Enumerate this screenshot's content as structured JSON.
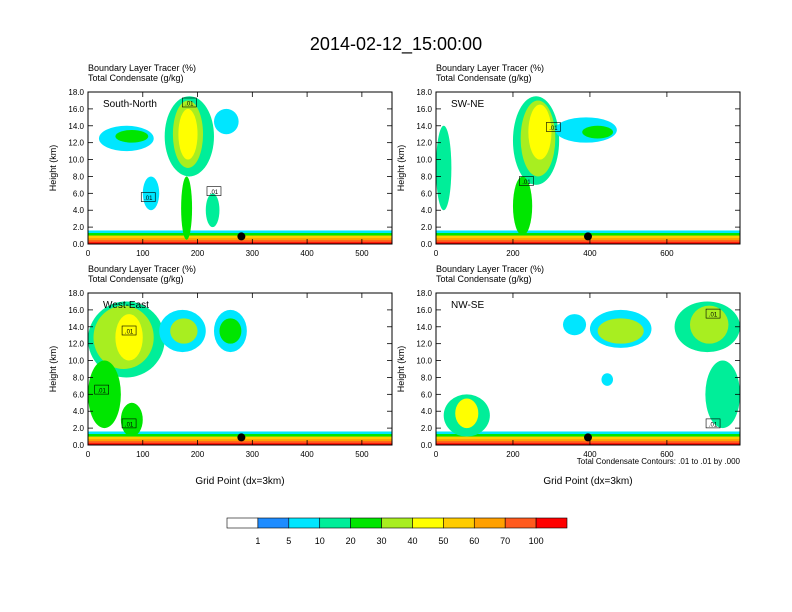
{
  "title": "2014-02-12_15:00:00",
  "footer_note": "Total Condensate Contours: .01 to .01 by .000",
  "colorbar": {
    "labels": [
      "1",
      "5",
      "10",
      "20",
      "30",
      "40",
      "50",
      "60",
      "70",
      "100"
    ],
    "colors": [
      "#ffffff",
      "#1e8cff",
      "#00e6ff",
      "#00ee99",
      "#00e600",
      "#a8ee20",
      "#ffff00",
      "#ffcc00",
      "#ffa000",
      "#ff5a1e",
      "#ff0000"
    ]
  },
  "chart_data": [
    {
      "type": "heatmap",
      "name": "South-North",
      "header_line1": "Boundary Layer Tracer    (%)",
      "header_line2": "Total Condensate   (g/kg)",
      "ylabel": "Height (km)",
      "xlabel": "",
      "xlim": [
        0,
        555
      ],
      "ylim": [
        0,
        18
      ],
      "xticks": [
        "0",
        "100",
        "200",
        "300",
        "400",
        "500"
      ],
      "xtick_values": [
        0,
        100,
        200,
        300,
        400,
        500
      ],
      "yticks": [
        "0.0",
        "2.0",
        "4.0",
        "6.0",
        "8.0",
        "10.0",
        "12.0",
        "14.0",
        "16.0",
        "18.0"
      ],
      "marker_x": 280,
      "contour_labels": [
        {
          "x": 185,
          "y": 16.7,
          "text": ".01"
        },
        {
          "x": 230,
          "y": 6.2,
          "text": ".01"
        },
        {
          "x": 110,
          "y": 5.5,
          "text": ".01"
        }
      ],
      "blobs": [
        {
          "x": [
            140,
            230
          ],
          "y": [
            8,
            17.5
          ],
          "level": 3
        },
        {
          "x": [
            155,
            210
          ],
          "y": [
            9,
            17
          ],
          "level": 5
        },
        {
          "x": [
            165,
            200
          ],
          "y": [
            10,
            16
          ],
          "level": 6
        },
        {
          "x": [
            20,
            120
          ],
          "y": [
            11,
            14
          ],
          "level": 2
        },
        {
          "x": [
            50,
            110
          ],
          "y": [
            12,
            13.5
          ],
          "level": 4
        },
        {
          "x": [
            100,
            130
          ],
          "y": [
            4,
            8
          ],
          "level": 2
        },
        {
          "x": [
            215,
            240
          ],
          "y": [
            2,
            6
          ],
          "level": 3
        },
        {
          "x": [
            170,
            190
          ],
          "y": [
            0.5,
            8
          ],
          "level": 4
        },
        {
          "x": [
            230,
            275
          ],
          "y": [
            13,
            16
          ],
          "level": 2
        }
      ]
    },
    {
      "type": "heatmap",
      "name": "SW-NE",
      "header_line1": "Boundary Layer Tracer    (%)",
      "header_line2": "Total Condensate   (g/kg)",
      "ylabel": "Height (km)",
      "xlabel": "",
      "xlim": [
        0,
        790
      ],
      "ylim": [
        0,
        18
      ],
      "xticks": [
        "0",
        "200",
        "400",
        "600"
      ],
      "xtick_values": [
        0,
        200,
        400,
        600
      ],
      "yticks": [
        "0.0",
        "2.0",
        "4.0",
        "6.0",
        "8.0",
        "10.0",
        "12.0",
        "14.0",
        "16.0",
        "18.0"
      ],
      "marker_x": 395,
      "contour_labels": [
        {
          "x": 305,
          "y": 13.8,
          "text": ".01"
        },
        {
          "x": 235,
          "y": 7.4,
          "text": ".01"
        }
      ],
      "blobs": [
        {
          "x": [
            200,
            320
          ],
          "y": [
            7,
            17.5
          ],
          "level": 3
        },
        {
          "x": [
            220,
            310
          ],
          "y": [
            8,
            17
          ],
          "level": 5
        },
        {
          "x": [
            240,
            300
          ],
          "y": [
            10,
            16.5
          ],
          "level": 6
        },
        {
          "x": [
            0,
            40
          ],
          "y": [
            4,
            14
          ],
          "level": 3
        },
        {
          "x": [
            200,
            250
          ],
          "y": [
            1,
            8
          ],
          "level": 4
        },
        {
          "x": [
            310,
            470
          ],
          "y": [
            12,
            15
          ],
          "level": 2
        },
        {
          "x": [
            380,
            460
          ],
          "y": [
            12.5,
            14
          ],
          "level": 4
        }
      ]
    },
    {
      "type": "heatmap",
      "name": "West-East",
      "header_line1": "Boundary Layer Tracer    (%)",
      "header_line2": "Total Condensate   (g/kg)",
      "ylabel": "Height (km)",
      "xlabel": "Grid Point (dx=3km)",
      "xlim": [
        0,
        555
      ],
      "ylim": [
        0,
        18
      ],
      "xticks": [
        "0",
        "100",
        "200",
        "300",
        "400",
        "500"
      ],
      "xtick_values": [
        0,
        100,
        200,
        300,
        400,
        500
      ],
      "yticks": [
        "0.0",
        "2.0",
        "4.0",
        "6.0",
        "8.0",
        "10.0",
        "12.0",
        "14.0",
        "16.0",
        "18.0"
      ],
      "marker_x": 280,
      "contour_labels": [
        {
          "x": 75,
          "y": 13.5,
          "text": ".01"
        },
        {
          "x": 25,
          "y": 6.5,
          "text": ".01"
        },
        {
          "x": 75,
          "y": 2.5,
          "text": ".01"
        }
      ],
      "blobs": [
        {
          "x": [
            0,
            140
          ],
          "y": [
            8,
            17
          ],
          "level": 3
        },
        {
          "x": [
            10,
            120
          ],
          "y": [
            9,
            16.5
          ],
          "level": 5
        },
        {
          "x": [
            50,
            100
          ],
          "y": [
            10,
            15.5
          ],
          "level": 6
        },
        {
          "x": [
            0,
            60
          ],
          "y": [
            2,
            10
          ],
          "level": 4
        },
        {
          "x": [
            130,
            215
          ],
          "y": [
            11,
            16
          ],
          "level": 2
        },
        {
          "x": [
            150,
            200
          ],
          "y": [
            12,
            15
          ],
          "level": 5
        },
        {
          "x": [
            230,
            290
          ],
          "y": [
            11,
            16
          ],
          "level": 2
        },
        {
          "x": [
            240,
            280
          ],
          "y": [
            12,
            15
          ],
          "level": 4
        },
        {
          "x": [
            60,
            100
          ],
          "y": [
            1,
            5
          ],
          "level": 4
        }
      ]
    },
    {
      "type": "heatmap",
      "name": "NW-SE",
      "header_line1": "Boundary Layer Tracer    (%)",
      "header_line2": "Total Condensate   (g/kg)",
      "ylabel": "Height (km)",
      "xlabel": "Grid Point (dx=3km)",
      "xlim": [
        0,
        790
      ],
      "ylim": [
        0,
        18
      ],
      "xticks": [
        "0",
        "200",
        "400",
        "600"
      ],
      "xtick_values": [
        0,
        200,
        400,
        600
      ],
      "yticks": [
        "0.0",
        "2.0",
        "4.0",
        "6.0",
        "8.0",
        "10.0",
        "12.0",
        "14.0",
        "16.0",
        "18.0"
      ],
      "marker_x": 395,
      "contour_labels": [
        {
          "x": 720,
          "y": 15.5,
          "text": ".01"
        },
        {
          "x": 720,
          "y": 2.5,
          "text": ".01"
        }
      ],
      "blobs": [
        {
          "x": [
            400,
            560
          ],
          "y": [
            11.5,
            16
          ],
          "level": 2
        },
        {
          "x": [
            420,
            540
          ],
          "y": [
            12,
            15
          ],
          "level": 5
        },
        {
          "x": [
            620,
            790
          ],
          "y": [
            11,
            17
          ],
          "level": 3
        },
        {
          "x": [
            660,
            760
          ],
          "y": [
            12,
            16.5
          ],
          "level": 5
        },
        {
          "x": [
            700,
            790
          ],
          "y": [
            2,
            10
          ],
          "level": 3
        },
        {
          "x": [
            20,
            140
          ],
          "y": [
            1,
            6
          ],
          "level": 3
        },
        {
          "x": [
            50,
            110
          ],
          "y": [
            2,
            5.5
          ],
          "level": 6
        },
        {
          "x": [
            330,
            390
          ],
          "y": [
            13,
            15.5
          ],
          "level": 2
        },
        {
          "x": [
            430,
            460
          ],
          "y": [
            7,
            8.5
          ],
          "level": 2
        }
      ]
    }
  ]
}
